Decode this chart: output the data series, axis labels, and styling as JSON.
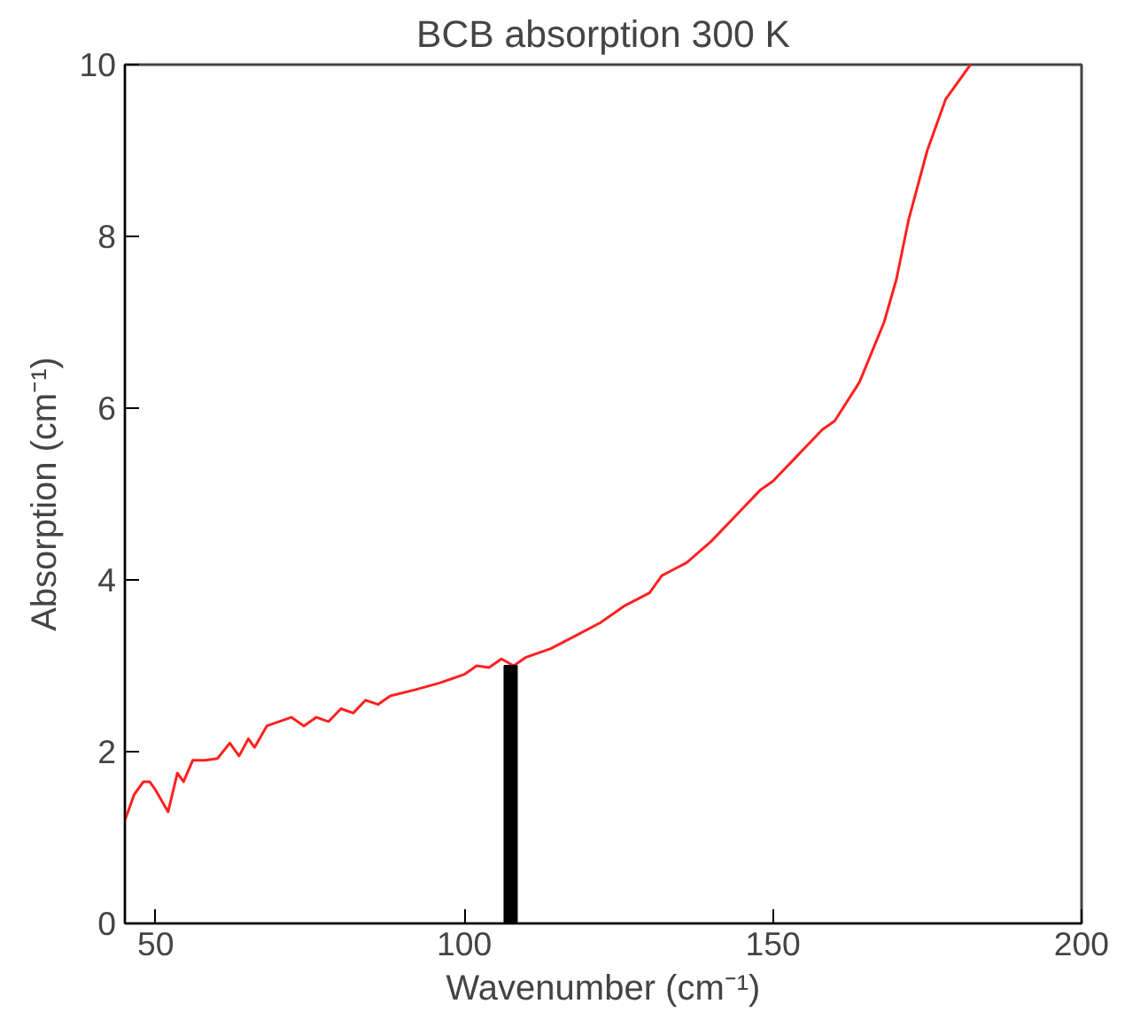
{
  "chart_data": {
    "type": "line",
    "title": "BCB absorption 300 K",
    "xlabel": "Wavenumber (cm⁻¹)",
    "ylabel": "Absorption (cm⁻¹)",
    "xlim": [
      45,
      200
    ],
    "ylim": [
      0,
      10
    ],
    "xticks": [
      50,
      100,
      150,
      200
    ],
    "yticks": [
      0,
      2,
      4,
      6,
      8,
      10
    ],
    "grid": false,
    "marker": "none",
    "line_style": "solid",
    "series": [
      {
        "color": "#ff2020",
        "x": [
          45,
          46.5,
          48,
          49,
          50,
          52,
          53.5,
          54.5,
          56,
          58,
          60,
          62,
          63.5,
          65,
          66,
          68,
          72,
          74,
          76,
          78,
          80,
          82,
          84,
          86,
          88,
          92,
          96,
          100,
          102,
          104,
          106,
          108,
          110,
          114,
          118,
          122,
          126,
          130,
          132,
          136,
          140,
          144,
          148,
          150,
          154,
          158,
          160,
          164,
          168,
          170,
          172,
          175,
          178,
          182
        ],
        "values": [
          1.2,
          1.5,
          1.65,
          1.65,
          1.55,
          1.3,
          1.75,
          1.65,
          1.9,
          1.9,
          1.92,
          2.1,
          1.95,
          2.15,
          2.05,
          2.3,
          2.4,
          2.3,
          2.4,
          2.35,
          2.5,
          2.45,
          2.6,
          2.55,
          2.65,
          2.72,
          2.8,
          2.9,
          3.0,
          2.98,
          3.08,
          3.0,
          3.1,
          3.2,
          3.35,
          3.5,
          3.7,
          3.85,
          4.05,
          4.2,
          4.45,
          4.75,
          5.05,
          5.15,
          5.45,
          5.75,
          5.85,
          6.3,
          7.0,
          7.5,
          8.2,
          9.0,
          9.6,
          10.0
        ]
      },
      {
        "type": "bar",
        "color": "#000000",
        "x": [
          107.5
        ],
        "values": [
          3.0
        ]
      }
    ]
  }
}
